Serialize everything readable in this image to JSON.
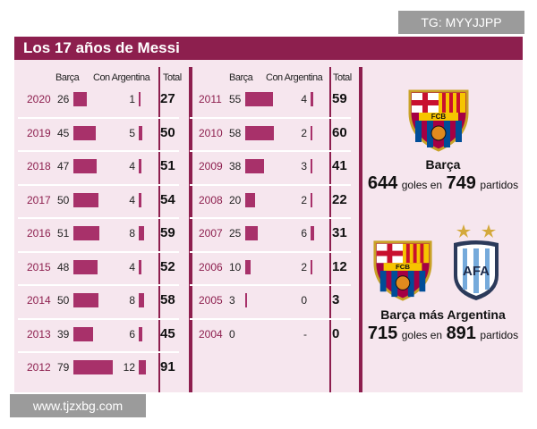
{
  "watermarks": {
    "top": "TG: MYYJJPP",
    "bottom": "www.tjzxbg.com"
  },
  "chart_data": {
    "type": "table",
    "title": "Los 17 años de Messi",
    "columns": {
      "barca": "Barça",
      "argentina": "Con Argentina",
      "total": "Total"
    },
    "left_rows": [
      {
        "year": "2020",
        "barca": "26",
        "argentina": "1",
        "total": "27"
      },
      {
        "year": "2019",
        "barca": "45",
        "argentina": "5",
        "total": "50"
      },
      {
        "year": "2018",
        "barca": "47",
        "argentina": "4",
        "total": "51"
      },
      {
        "year": "2017",
        "barca": "50",
        "argentina": "4",
        "total": "54"
      },
      {
        "year": "2016",
        "barca": "51",
        "argentina": "8",
        "total": "59"
      },
      {
        "year": "2015",
        "barca": "48",
        "argentina": "4",
        "total": "52"
      },
      {
        "year": "2014",
        "barca": "50",
        "argentina": "8",
        "total": "58"
      },
      {
        "year": "2013",
        "barca": "39",
        "argentina": "6",
        "total": "45"
      },
      {
        "year": "2012",
        "barca": "79",
        "argentina": "12",
        "total": "91"
      }
    ],
    "right_rows": [
      {
        "year": "2011",
        "barca": "55",
        "argentina": "4",
        "total": "59"
      },
      {
        "year": "2010",
        "barca": "58",
        "argentina": "2",
        "total": "60"
      },
      {
        "year": "2009",
        "barca": "38",
        "argentina": "3",
        "total": "41"
      },
      {
        "year": "2008",
        "barca": "20",
        "argentina": "2",
        "total": "22"
      },
      {
        "year": "2007",
        "barca": "25",
        "argentina": "6",
        "total": "31"
      },
      {
        "year": "2006",
        "barca": "10",
        "argentina": "2",
        "total": "12"
      },
      {
        "year": "2005",
        "barca": "3",
        "argentina": "0",
        "total": "3"
      },
      {
        "year": "2004",
        "barca": "0",
        "argentina": "-",
        "total": "0"
      }
    ],
    "summary": {
      "barca": {
        "label": "Barça",
        "goals": "644",
        "goals_text": "goles en",
        "matches": "749",
        "matches_text": "partidos"
      },
      "combined": {
        "label": "Barça más Argentina",
        "goals": "715",
        "goals_text": "goles en",
        "matches": "891",
        "matches_text": "partidos"
      }
    },
    "badges": {
      "fcb": "FCB",
      "afa": "AFA"
    }
  }
}
